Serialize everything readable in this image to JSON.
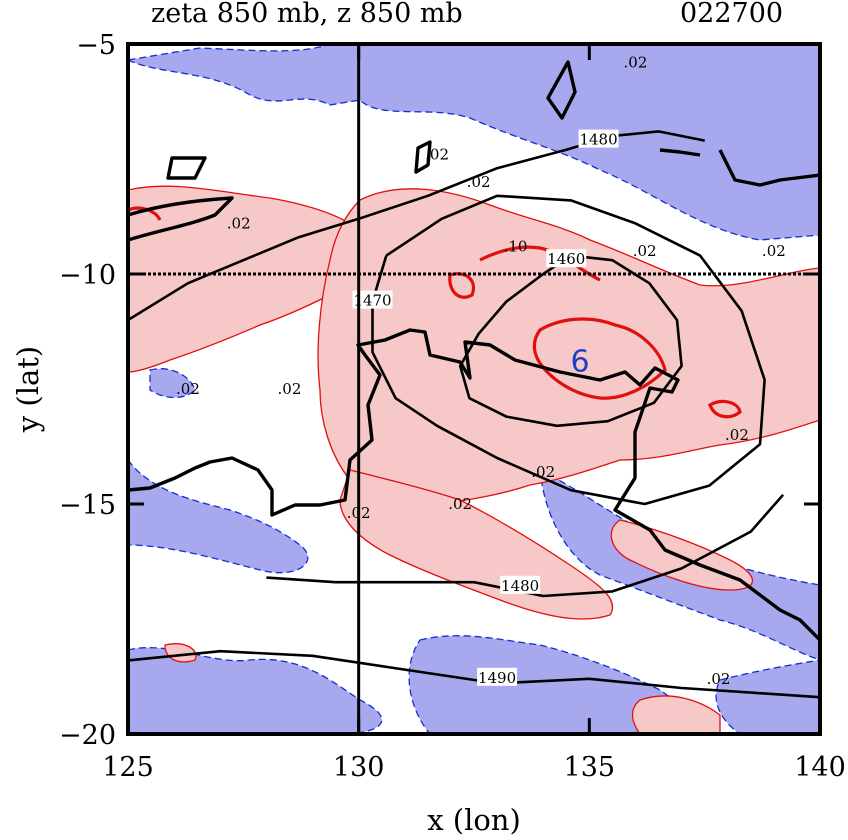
{
  "chart_data": {
    "type": "contour",
    "title": "zeta 850 mb, z 850 mb",
    "date_label": "022700",
    "xlabel": "x (lon)",
    "ylabel": "y (lat)",
    "xlim": [
      125,
      140
    ],
    "ylim": [
      -20,
      -5
    ],
    "x_ticks": [
      {
        "value": 125,
        "label": "125"
      },
      {
        "value": 130,
        "label": "130"
      },
      {
        "value": 135,
        "label": "135"
      },
      {
        "value": 140,
        "label": "140"
      }
    ],
    "y_ticks": [
      {
        "value": -5,
        "label": "−5"
      },
      {
        "value": -10,
        "label": "−10"
      },
      {
        "value": -15,
        "label": "−15"
      },
      {
        "value": -20,
        "label": "−20"
      }
    ],
    "reference_lines": {
      "longitude": 130,
      "latitude": -10
    },
    "storm_marker": {
      "lon": 134.8,
      "lat": -11.9,
      "symbol": "6",
      "color": "#1f3fc8"
    },
    "height_contours": [
      {
        "value": 1460,
        "label": "1460",
        "label_at": [
          134.5,
          -9.7
        ],
        "points": [
          [
            134.0,
            -10.0
          ],
          [
            133.2,
            -10.6
          ],
          [
            132.6,
            -11.3
          ],
          [
            132.2,
            -12.0
          ],
          [
            132.4,
            -12.7
          ],
          [
            133.2,
            -13.1
          ],
          [
            134.3,
            -13.3
          ],
          [
            135.4,
            -13.2
          ],
          [
            136.4,
            -12.8
          ],
          [
            137.0,
            -12.0
          ],
          [
            136.9,
            -11.0
          ],
          [
            136.3,
            -10.2
          ],
          [
            135.5,
            -9.7
          ],
          [
            134.6,
            -9.6
          ],
          [
            134.0,
            -10.0
          ]
        ]
      },
      {
        "value": 1470,
        "label": "1470",
        "label_at": [
          130.3,
          -10.6
        ],
        "points": [
          [
            130.6,
            -9.6
          ],
          [
            131.8,
            -8.8
          ],
          [
            133.0,
            -8.3
          ],
          [
            134.6,
            -8.4
          ],
          [
            136.0,
            -8.9
          ],
          [
            137.4,
            -9.6
          ],
          [
            138.3,
            -10.8
          ],
          [
            138.8,
            -12.3
          ],
          [
            138.7,
            -13.7
          ],
          [
            137.6,
            -14.6
          ],
          [
            136.2,
            -15.0
          ],
          [
            134.6,
            -14.7
          ],
          [
            133.0,
            -14.0
          ],
          [
            131.7,
            -13.3
          ],
          [
            130.8,
            -12.7
          ],
          [
            130.3,
            -11.7
          ],
          [
            130.3,
            -10.6
          ],
          [
            130.6,
            -9.6
          ]
        ]
      },
      {
        "value": 1480,
        "label": "1480",
        "label_at": [
          135.2,
          -7.1
        ],
        "points": [
          [
            125.0,
            -11.0
          ],
          [
            126.3,
            -10.2
          ],
          [
            127.5,
            -9.7
          ],
          [
            128.7,
            -9.2
          ],
          [
            130.0,
            -8.8
          ],
          [
            131.5,
            -8.3
          ],
          [
            133.0,
            -7.7
          ],
          [
            134.5,
            -7.3
          ],
          [
            135.5,
            -7.0
          ],
          [
            136.5,
            -6.9
          ],
          [
            137.5,
            -7.1
          ]
        ]
      },
      {
        "value": 1480,
        "label": "1480",
        "label_at": [
          133.5,
          -16.8
        ],
        "points": [
          [
            128.0,
            -16.6
          ],
          [
            129.5,
            -16.7
          ],
          [
            131.0,
            -16.7
          ],
          [
            132.5,
            -16.7
          ],
          [
            134.0,
            -17.0
          ],
          [
            135.5,
            -16.9
          ],
          [
            137.0,
            -16.4
          ],
          [
            138.5,
            -15.6
          ],
          [
            139.2,
            -14.8
          ]
        ]
      },
      {
        "value": 1490,
        "label": "1490",
        "label_at": [
          133.0,
          -18.8
        ],
        "points": [
          [
            125.0,
            -18.4
          ],
          [
            127.0,
            -18.2
          ],
          [
            129.0,
            -18.3
          ],
          [
            131.0,
            -18.6
          ],
          [
            133.0,
            -18.9
          ],
          [
            135.0,
            -18.8
          ],
          [
            137.0,
            -19.0
          ],
          [
            138.5,
            -19.1
          ],
          [
            140.0,
            -19.2
          ]
        ]
      }
    ],
    "vorticity_contours": [
      {
        "value": 0.02,
        "label": ".02",
        "label_at": [
          127.4,
          -8.9
        ]
      },
      {
        "value": 0.02,
        "label": ".02",
        "label_at": [
          131.7,
          -7.4
        ]
      },
      {
        "value": 0.02,
        "label": ".02",
        "label_at": [
          132.6,
          -8.0
        ]
      },
      {
        "value": 0.1,
        "label": ".10",
        "label_at": [
          133.4,
          -9.4
        ]
      },
      {
        "value": 0.02,
        "label": ".02",
        "label_at": [
          136.2,
          -9.5
        ]
      },
      {
        "value": 0.02,
        "label": ".02",
        "label_at": [
          126.3,
          -12.5
        ]
      },
      {
        "value": 0.02,
        "label": ".02",
        "label_at": [
          128.5,
          -12.5
        ]
      },
      {
        "value": 0.02,
        "label": ".02",
        "label_at": [
          138.2,
          -13.5
        ]
      },
      {
        "value": 0.02,
        "label": ".02",
        "label_at": [
          134.0,
          -14.3
        ]
      },
      {
        "value": 0.02,
        "label": ".02",
        "label_at": [
          132.2,
          -15.0
        ]
      },
      {
        "value": 0.02,
        "label": ".02",
        "label_at": [
          130.0,
          -15.2
        ]
      },
      {
        "value": 0.02,
        "label": ".02",
        "label_at": [
          136.0,
          -5.4
        ]
      },
      {
        "value": 0.02,
        "label": ".02",
        "label_at": [
          139.0,
          -9.5
        ]
      },
      {
        "value": 0.02,
        "label": ".02",
        "label_at": [
          137.8,
          -18.8
        ]
      }
    ],
    "colors": {
      "positive_fill": "#f7c8c8",
      "positive_line": "#e01010",
      "negative_fill": "#a8a8ee",
      "negative_line": "#1030d0",
      "height_line": "#000000",
      "coastline": "#000000"
    },
    "grid": false
  }
}
